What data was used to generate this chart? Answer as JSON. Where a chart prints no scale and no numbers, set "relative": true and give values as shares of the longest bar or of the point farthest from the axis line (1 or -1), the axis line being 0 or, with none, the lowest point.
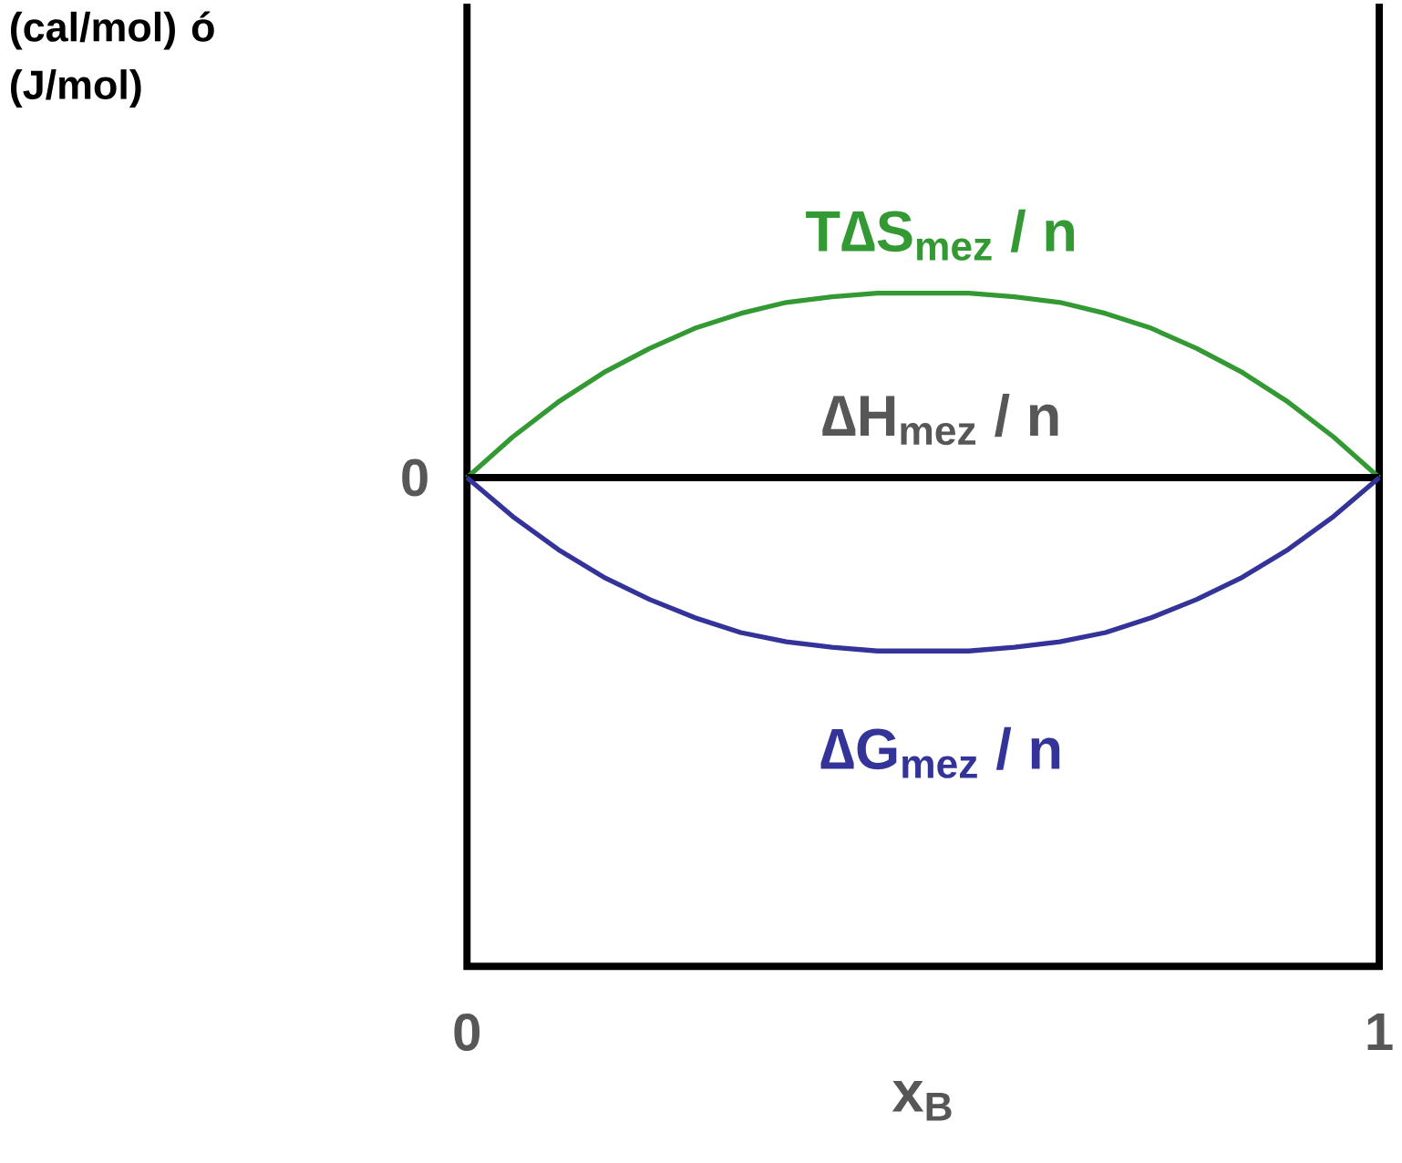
{
  "chart_data": {
    "type": "line",
    "relative": true,
    "xlabel": "x$_{B}$",
    "xlim": [
      0,
      1
    ],
    "xticks": [
      0,
      1
    ],
    "x": [
      0,
      0.05,
      0.1,
      0.15,
      0.2,
      0.25,
      0.3,
      0.35,
      0.4,
      0.45,
      0.5,
      0.55,
      0.6,
      0.65,
      0.7,
      0.75,
      0.8,
      0.85,
      0.9,
      0.95,
      1
    ],
    "series": [
      {
        "name": "T∆S$_{mez}$ / n",
        "color": "#339933",
        "values": [
          0,
          0.22,
          0.41,
          0.57,
          0.7,
          0.81,
          0.89,
          0.95,
          0.98,
          1,
          1,
          1,
          0.98,
          0.95,
          0.89,
          0.81,
          0.7,
          0.57,
          0.41,
          0.22,
          0
        ]
      },
      {
        "name": "∆H$_{mez}$ / n",
        "color": "#000000",
        "values": [
          0,
          0,
          0,
          0,
          0,
          0,
          0,
          0,
          0,
          0,
          0,
          0,
          0,
          0,
          0,
          0,
          0,
          0,
          0,
          0,
          0
        ]
      },
      {
        "name": "∆G$_{mez}$ / n",
        "color": "#333399",
        "values": [
          0,
          -0.21,
          -0.39,
          -0.54,
          -0.66,
          -0.76,
          -0.84,
          -0.89,
          -0.92,
          -0.94,
          -0.94,
          -0.94,
          -0.92,
          -0.89,
          -0.84,
          -0.76,
          -0.66,
          -0.54,
          -0.39,
          -0.21,
          0
        ]
      }
    ],
    "annotations": [
      {
        "text": "0",
        "x": 0,
        "y": 0
      },
      "(cal/mol) ó (J/mol)"
    ],
    "legend": false,
    "marker": "none",
    "line_style": "solid"
  }
}
